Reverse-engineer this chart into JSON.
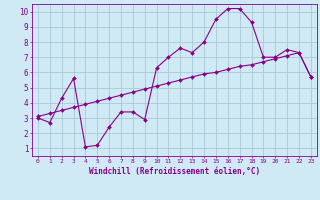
{
  "xlabel": "Windchill (Refroidissement éolien,°C)",
  "background_color": "#cfe9f5",
  "grid_color": "#aac8d8",
  "line_color": "#880088",
  "x_curve1": [
    0,
    1,
    2,
    3,
    4,
    5,
    6,
    7,
    8,
    9,
    10,
    11,
    12,
    13,
    14,
    15,
    16,
    17,
    18,
    19,
    20,
    21,
    22,
    23
  ],
  "y_curve1": [
    3.0,
    2.7,
    4.3,
    5.6,
    1.1,
    1.2,
    2.4,
    3.4,
    3.4,
    2.9,
    6.3,
    7.0,
    7.6,
    7.3,
    8.0,
    9.5,
    10.2,
    10.2,
    9.3,
    7.0,
    7.0,
    7.5,
    7.3,
    5.7
  ],
  "x_curve2": [
    0,
    1,
    2,
    3,
    4,
    5,
    6,
    7,
    8,
    9,
    10,
    11,
    12,
    13,
    14,
    15,
    16,
    17,
    18,
    19,
    20,
    21,
    22,
    23
  ],
  "y_curve2": [
    3.1,
    3.3,
    3.5,
    3.7,
    3.9,
    4.1,
    4.3,
    4.5,
    4.7,
    4.9,
    5.1,
    5.3,
    5.5,
    5.7,
    5.9,
    6.0,
    6.2,
    6.4,
    6.5,
    6.7,
    6.9,
    7.1,
    7.3,
    5.7
  ],
  "xlim": [
    -0.5,
    23.5
  ],
  "ylim": [
    0.5,
    10.5
  ],
  "yticks": [
    1,
    2,
    3,
    4,
    5,
    6,
    7,
    8,
    9,
    10
  ],
  "xticks": [
    0,
    1,
    2,
    3,
    4,
    5,
    6,
    7,
    8,
    9,
    10,
    11,
    12,
    13,
    14,
    15,
    16,
    17,
    18,
    19,
    20,
    21,
    22,
    23
  ]
}
